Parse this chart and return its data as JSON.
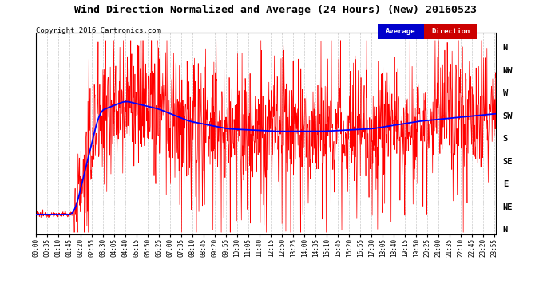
{
  "title": "Wind Direction Normalized and Average (24 Hours) (New) 20160523",
  "copyright": "Copyright 2016 Cartronics.com",
  "bg_color": "#ffffff",
  "plot_bg_color": "#ffffff",
  "grid_color": "#bbbbbb",
  "direction_color": "#ff0000",
  "average_color": "#0000ff",
  "y_labels": [
    "N",
    "NW",
    "W",
    "SW",
    "S",
    "SE",
    "E",
    "NE",
    "N"
  ],
  "y_values": [
    360,
    315,
    270,
    225,
    180,
    135,
    90,
    45,
    0
  ],
  "y_lim": [
    -10,
    390
  ],
  "tick_interval_min": 35,
  "n_points": 1440
}
